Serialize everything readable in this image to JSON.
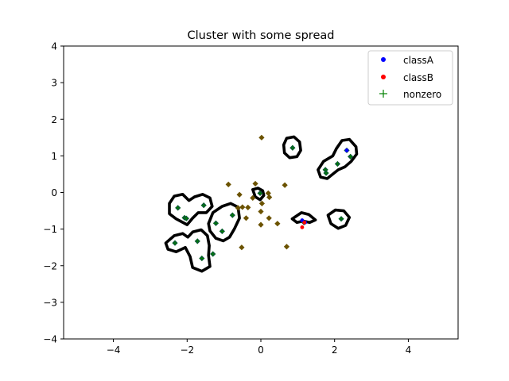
{
  "chart_data": {
    "type": "scatter",
    "title": "Cluster with some spread",
    "xlabel": "",
    "ylabel": "",
    "xlim": [
      -5.35,
      5.35
    ],
    "ylim": [
      -4,
      4
    ],
    "xticks": [
      -4,
      -2,
      0,
      2,
      4
    ],
    "yticks": [
      -4,
      -3,
      -2,
      -1,
      0,
      1,
      2,
      3,
      4
    ],
    "xtick_labels": [
      "−4",
      "−2",
      "0",
      "2",
      "4"
    ],
    "ytick_labels": [
      "−4",
      "−3",
      "−2",
      "−1",
      "0",
      "1",
      "2",
      "3",
      "4"
    ],
    "grid": false,
    "legend": {
      "placement": "top-right",
      "entries": [
        {
          "label": "classA",
          "marker": "dot",
          "color": "#0000ff"
        },
        {
          "label": "classB",
          "marker": "dot",
          "color": "#ff0000"
        },
        {
          "label": "nonzero",
          "marker": "plus",
          "color": "#008000"
        }
      ]
    },
    "series": [
      {
        "name": "classA",
        "color": "#0000ff",
        "points": [
          [
            2.33,
            1.15
          ],
          [
            1.12,
            -0.76
          ],
          [
            1.2,
            -0.82
          ]
        ]
      },
      {
        "name": "classB",
        "color": "#ff0000",
        "points": [
          [
            1.12,
            -0.95
          ],
          [
            1.18,
            -0.82
          ]
        ]
      },
      {
        "name": "nonzero",
        "color": "#008000",
        "points": [
          [
            0.86,
            1.22
          ],
          [
            2.33,
            1.15
          ],
          [
            2.43,
            0.98
          ],
          [
            2.08,
            0.78
          ],
          [
            1.75,
            0.62
          ],
          [
            1.77,
            0.53
          ],
          [
            -2.25,
            -0.42
          ],
          [
            -2.07,
            -0.69
          ],
          [
            -2.02,
            -0.71
          ],
          [
            -1.55,
            -0.35
          ],
          [
            -0.77,
            -0.62
          ],
          [
            -1.22,
            -0.84
          ],
          [
            -1.05,
            -1.06
          ],
          [
            -2.33,
            -1.38
          ],
          [
            -1.72,
            -1.33
          ],
          [
            -1.6,
            -1.8
          ],
          [
            -0.02,
            -0.02
          ],
          [
            1.17,
            -0.82
          ],
          [
            2.18,
            -0.72
          ],
          [
            -1.3,
            -1.68
          ]
        ]
      },
      {
        "name": "",
        "color": "#6b5200",
        "points": [
          [
            0.02,
            1.5
          ],
          [
            -0.88,
            0.22
          ],
          [
            -0.15,
            0.24
          ],
          [
            -0.58,
            -0.06
          ],
          [
            0.2,
            -0.02
          ],
          [
            0.23,
            -0.13
          ],
          [
            0.65,
            0.2
          ],
          [
            -0.22,
            -0.15
          ],
          [
            0.03,
            -0.3
          ],
          [
            -0.5,
            -0.4
          ],
          [
            -0.35,
            -0.41
          ],
          [
            0.0,
            -0.52
          ],
          [
            -0.62,
            -0.42
          ],
          [
            -0.4,
            -0.7
          ],
          [
            0.22,
            -0.7
          ],
          [
            0.45,
            -0.85
          ],
          [
            0.0,
            -0.88
          ],
          [
            -0.52,
            -1.5
          ],
          [
            0.7,
            -1.48
          ]
        ]
      }
    ],
    "contours": [
      [
        [
          0.62,
          1.3
        ],
        [
          0.7,
          1.48
        ],
        [
          0.9,
          1.52
        ],
        [
          1.05,
          1.38
        ],
        [
          1.08,
          1.15
        ],
        [
          0.98,
          0.98
        ],
        [
          0.78,
          0.95
        ],
        [
          0.64,
          1.08
        ]
      ],
      [
        [
          1.55,
          0.62
        ],
        [
          1.7,
          0.85
        ],
        [
          1.95,
          1.0
        ],
        [
          2.05,
          1.2
        ],
        [
          2.2,
          1.42
        ],
        [
          2.4,
          1.45
        ],
        [
          2.58,
          1.25
        ],
        [
          2.6,
          1.05
        ],
        [
          2.45,
          0.85
        ],
        [
          2.28,
          0.7
        ],
        [
          2.1,
          0.62
        ],
        [
          1.95,
          0.5
        ],
        [
          1.8,
          0.38
        ],
        [
          1.62,
          0.42
        ]
      ],
      [
        [
          -0.22,
          0.08
        ],
        [
          -0.08,
          0.12
        ],
        [
          0.05,
          0.05
        ],
        [
          0.08,
          -0.08
        ],
        [
          -0.02,
          -0.2
        ],
        [
          -0.15,
          -0.12
        ]
      ],
      [
        [
          -2.48,
          -0.3
        ],
        [
          -2.35,
          -0.1
        ],
        [
          -2.12,
          -0.05
        ],
        [
          -1.95,
          -0.22
        ],
        [
          -1.8,
          -0.12
        ],
        [
          -1.58,
          -0.05
        ],
        [
          -1.38,
          -0.15
        ],
        [
          -1.32,
          -0.38
        ],
        [
          -1.48,
          -0.55
        ],
        [
          -1.7,
          -0.55
        ],
        [
          -1.85,
          -0.7
        ],
        [
          -2.0,
          -0.88
        ],
        [
          -2.15,
          -0.8
        ],
        [
          -2.3,
          -0.72
        ],
        [
          -2.48,
          -0.58
        ]
      ],
      [
        [
          -2.58,
          -1.38
        ],
        [
          -2.35,
          -1.18
        ],
        [
          -2.12,
          -1.12
        ],
        [
          -1.98,
          -1.22
        ],
        [
          -1.85,
          -1.08
        ],
        [
          -1.62,
          -1.02
        ],
        [
          -1.45,
          -1.18
        ],
        [
          -1.4,
          -1.45
        ],
        [
          -1.42,
          -1.72
        ],
        [
          -1.38,
          -2.02
        ],
        [
          -1.6,
          -2.15
        ],
        [
          -1.85,
          -2.05
        ],
        [
          -1.92,
          -1.75
        ],
        [
          -2.05,
          -1.5
        ],
        [
          -2.3,
          -1.62
        ],
        [
          -2.52,
          -1.55
        ]
      ],
      [
        [
          -1.42,
          -0.85
        ],
        [
          -1.3,
          -0.55
        ],
        [
          -1.05,
          -0.38
        ],
        [
          -0.82,
          -0.3
        ],
        [
          -0.62,
          -0.4
        ],
        [
          -0.58,
          -0.7
        ],
        [
          -0.72,
          -1.0
        ],
        [
          -0.85,
          -1.22
        ],
        [
          -1.02,
          -1.32
        ],
        [
          -1.22,
          -1.25
        ],
        [
          -1.38,
          -1.05
        ]
      ],
      [
        [
          0.85,
          -0.72
        ],
        [
          1.1,
          -0.55
        ],
        [
          1.3,
          -0.6
        ],
        [
          1.48,
          -0.75
        ],
        [
          1.32,
          -0.82
        ],
        [
          1.15,
          -0.78
        ],
        [
          0.98,
          -0.82
        ]
      ],
      [
        [
          1.82,
          -0.62
        ],
        [
          2.02,
          -0.48
        ],
        [
          2.25,
          -0.5
        ],
        [
          2.4,
          -0.68
        ],
        [
          2.3,
          -0.9
        ],
        [
          2.1,
          -0.98
        ],
        [
          1.9,
          -0.85
        ]
      ]
    ]
  }
}
